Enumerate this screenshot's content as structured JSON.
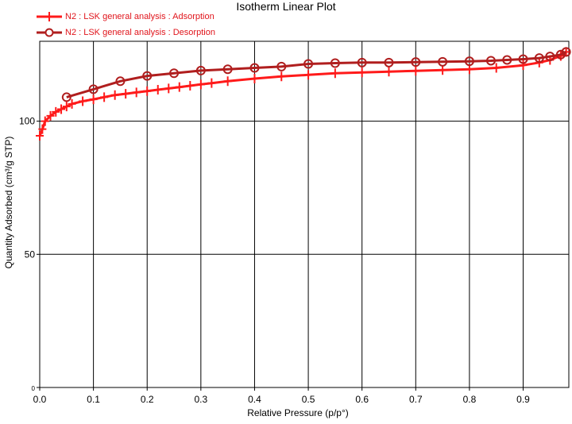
{
  "chart_data": {
    "type": "line",
    "title": "Isotherm Linear Plot",
    "xlabel": "Relative Pressure (p/p°)",
    "ylabel": "Quantity Adsorbed (cm³/g STP)",
    "xlim": [
      0,
      0.985
    ],
    "ylim": [
      0,
      130
    ],
    "x_ticks": [
      "0.0",
      "0.1",
      "0.2",
      "0.3",
      "0.4",
      "0.5",
      "0.6",
      "0.7",
      "0.8",
      "0.9"
    ],
    "x_tick_values": [
      0,
      0.1,
      0.2,
      0.3,
      0.4,
      0.5,
      0.6,
      0.7,
      0.8,
      0.9
    ],
    "y_ticks": [
      "0",
      "50",
      "100"
    ],
    "y_tick_values": [
      0,
      50,
      100
    ],
    "grid": true,
    "legend_position": "top-left",
    "series": [
      {
        "name": "N2 : LSK general analysis : Adsorption",
        "color": "#ff1a1a",
        "marker": "plus",
        "x": [
          0.0,
          0.005,
          0.01,
          0.02,
          0.03,
          0.04,
          0.05,
          0.06,
          0.08,
          0.1,
          0.12,
          0.14,
          0.16,
          0.18,
          0.2,
          0.22,
          0.24,
          0.26,
          0.28,
          0.3,
          0.32,
          0.35,
          0.4,
          0.45,
          0.5,
          0.55,
          0.6,
          0.65,
          0.7,
          0.75,
          0.8,
          0.85,
          0.9,
          0.93,
          0.95,
          0.97,
          0.98
        ],
        "y": [
          94.5,
          97,
          100,
          102,
          103.5,
          104.5,
          105.5,
          106.5,
          107.5,
          108.2,
          109,
          109.8,
          110.3,
          110.8,
          111.3,
          111.8,
          112.3,
          112.8,
          113.3,
          113.8,
          114.3,
          115,
          116,
          116.8,
          117.4,
          118,
          118.3,
          118.6,
          118.9,
          119.2,
          119.5,
          120,
          121,
          122,
          123,
          124.5,
          126
        ]
      },
      {
        "name": "N2 : LSK general analysis : Desorption",
        "color": "#b01e1e",
        "marker": "circle",
        "x": [
          0.05,
          0.1,
          0.15,
          0.2,
          0.25,
          0.3,
          0.35,
          0.4,
          0.45,
          0.5,
          0.55,
          0.6,
          0.65,
          0.7,
          0.75,
          0.8,
          0.84,
          0.87,
          0.9,
          0.93,
          0.95,
          0.97,
          0.98
        ],
        "y": [
          109,
          112,
          115,
          117,
          118,
          119,
          119.5,
          120,
          120.5,
          121.5,
          121.8,
          122,
          122,
          122.2,
          122.3,
          122.5,
          122.7,
          123,
          123.3,
          123.7,
          124.3,
          125,
          126
        ]
      }
    ]
  }
}
